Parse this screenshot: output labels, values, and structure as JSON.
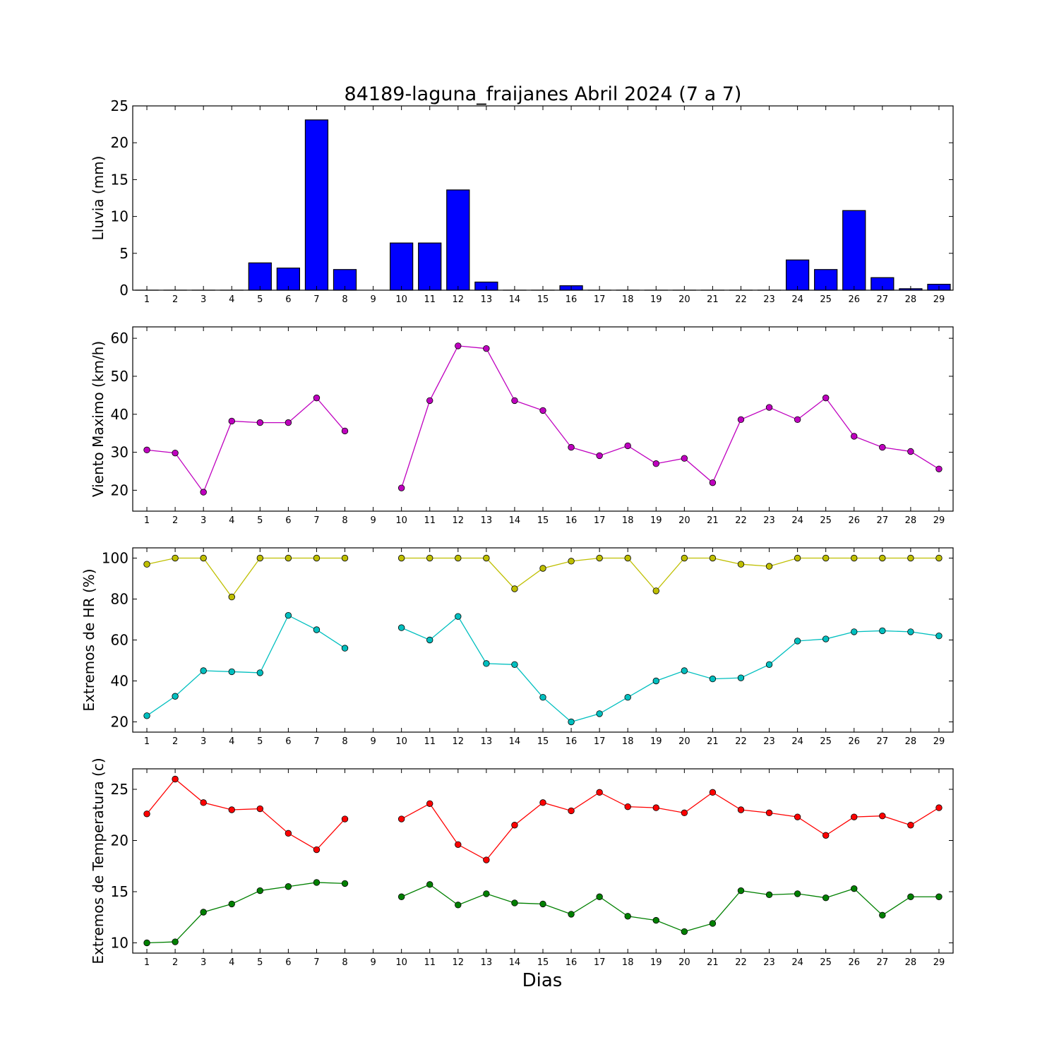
{
  "chart_data": [
    {
      "type": "bar",
      "title": "84189-laguna_fraijanes Abril 2024  (7 a 7)",
      "ylabel": "Lluvia (mm)",
      "xlabel": "",
      "x": [
        1,
        2,
        3,
        4,
        5,
        6,
        7,
        8,
        9,
        10,
        11,
        12,
        13,
        14,
        15,
        16,
        17,
        18,
        19,
        20,
        21,
        22,
        23,
        24,
        25,
        26,
        27,
        28,
        29
      ],
      "ylim": [
        0,
        25
      ],
      "yticks": [
        0,
        5,
        10,
        15,
        20,
        25
      ],
      "series": [
        {
          "color": "#0000ff",
          "values": [
            0,
            0,
            0,
            0,
            3.7,
            3.0,
            23.1,
            2.8,
            null,
            6.4,
            6.4,
            13.6,
            1.1,
            0,
            0,
            0.6,
            0,
            0,
            0,
            0,
            0,
            0,
            0,
            4.1,
            2.8,
            10.8,
            1.7,
            0.2,
            0.8
          ]
        }
      ]
    },
    {
      "type": "line",
      "ylabel": "Viento Maximo (km/h)",
      "xlabel": "",
      "x": [
        1,
        2,
        3,
        4,
        5,
        6,
        7,
        8,
        9,
        10,
        11,
        12,
        13,
        14,
        15,
        16,
        17,
        18,
        19,
        20,
        21,
        22,
        23,
        24,
        25,
        26,
        27,
        28,
        29
      ],
      "ylim": [
        14.5,
        63
      ],
      "yticks": [
        20,
        30,
        40,
        50,
        60
      ],
      "series": [
        {
          "color": "#bf00bf",
          "values": [
            30.6,
            29.8,
            19.5,
            38.2,
            37.8,
            37.8,
            44.3,
            35.6,
            null,
            20.6,
            43.6,
            58.0,
            57.3,
            43.6,
            41.0,
            31.3,
            29.1,
            31.7,
            27.0,
            28.4,
            22.0,
            38.6,
            41.8,
            38.6,
            44.3,
            34.2,
            31.3,
            30.2,
            25.6
          ]
        }
      ]
    },
    {
      "type": "line",
      "ylabel": "Extremos de HR (%)",
      "xlabel": "",
      "x": [
        1,
        2,
        3,
        4,
        5,
        6,
        7,
        8,
        9,
        10,
        11,
        12,
        13,
        14,
        15,
        16,
        17,
        18,
        19,
        20,
        21,
        22,
        23,
        24,
        25,
        26,
        27,
        28,
        29
      ],
      "ylim": [
        15,
        105
      ],
      "yticks": [
        20,
        40,
        60,
        80,
        100
      ],
      "series": [
        {
          "color": "#bfbf00",
          "values": [
            97,
            100,
            100,
            81,
            100,
            100,
            100,
            100,
            null,
            100,
            100,
            100,
            100,
            85,
            95,
            98.5,
            100,
            100,
            84,
            100,
            100,
            97,
            96,
            100,
            100,
            100,
            100,
            100,
            100
          ]
        },
        {
          "color": "#00bfbf",
          "values": [
            23,
            32.5,
            45,
            44.5,
            44,
            72,
            65,
            56,
            null,
            66,
            60,
            71.5,
            48.5,
            48,
            32,
            20,
            24,
            32,
            40,
            45,
            41,
            41.5,
            48,
            59.5,
            60.5,
            64,
            64.5,
            64,
            62
          ]
        }
      ]
    },
    {
      "type": "line",
      "ylabel": "Extremos de Temperatura (c)",
      "xlabel": "Dias",
      "x": [
        1,
        2,
        3,
        4,
        5,
        6,
        7,
        8,
        9,
        10,
        11,
        12,
        13,
        14,
        15,
        16,
        17,
        18,
        19,
        20,
        21,
        22,
        23,
        24,
        25,
        26,
        27,
        28,
        29
      ],
      "ylim": [
        9,
        27
      ],
      "yticks": [
        10,
        15,
        20,
        25
      ],
      "series": [
        {
          "color": "#ff0000",
          "values": [
            22.6,
            26.0,
            23.7,
            23.0,
            23.1,
            20.7,
            19.1,
            22.1,
            null,
            22.1,
            23.6,
            19.6,
            18.1,
            21.5,
            23.7,
            22.9,
            24.7,
            23.3,
            23.2,
            22.7,
            24.7,
            23.0,
            22.7,
            22.3,
            20.5,
            22.3,
            22.4,
            21.5,
            23.2
          ]
        },
        {
          "color": "#008000",
          "values": [
            10.0,
            10.1,
            13.0,
            13.8,
            15.1,
            15.5,
            15.9,
            15.8,
            null,
            14.5,
            15.7,
            13.7,
            14.8,
            13.9,
            13.8,
            12.8,
            14.5,
            12.6,
            12.2,
            11.1,
            11.9,
            15.1,
            14.7,
            14.8,
            14.4,
            15.3,
            12.7,
            14.5,
            14.5
          ]
        }
      ]
    }
  ]
}
